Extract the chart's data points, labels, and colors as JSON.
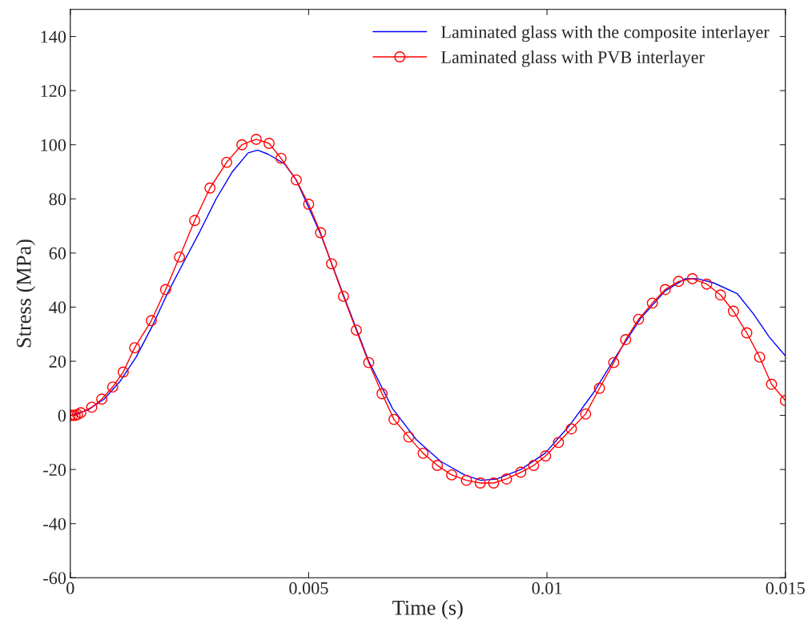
{
  "chart_data": {
    "type": "line",
    "xlabel": "Time (s)",
    "ylabel": "Stress (MPa)",
    "xlim": [
      0,
      0.015
    ],
    "ylim": [
      -60,
      150
    ],
    "xticks": [
      0,
      0.005,
      0.01,
      0.015
    ],
    "yticks": [
      -60,
      -40,
      -20,
      0,
      20,
      40,
      60,
      80,
      100,
      120,
      140
    ],
    "grid": false,
    "legend": "top right",
    "series": [
      {
        "name": "Laminated glass with the composite interlayer",
        "color": "#0000ff",
        "marker": "none",
        "x": [
          0,
          0.00037,
          0.00071,
          0.00104,
          0.00138,
          0.00172,
          0.00205,
          0.00239,
          0.00272,
          0.00306,
          0.0034,
          0.00373,
          0.00393,
          0.00415,
          0.00449,
          0.00474,
          0.00525,
          0.00575,
          0.00626,
          0.00676,
          0.00726,
          0.00777,
          0.00827,
          0.00861,
          0.00895,
          0.00945,
          0.00996,
          0.01046,
          0.01096,
          0.01147,
          0.01197,
          0.01248,
          0.0129,
          0.01315,
          0.01349,
          0.01399,
          0.01433,
          0.01466,
          0.015
        ],
        "values": [
          0,
          2,
          6,
          12.5,
          21.5,
          33,
          45.5,
          57,
          68,
          80,
          90,
          97,
          98,
          96.5,
          93,
          87,
          67,
          43.5,
          20,
          2.5,
          -9,
          -17,
          -22,
          -24,
          -23.5,
          -20,
          -14,
          -4,
          8,
          22.5,
          36,
          46,
          50.5,
          50.5,
          49,
          45,
          37.5,
          29,
          22
        ]
      },
      {
        "name": "Laminated glass with PVB interlayer",
        "color": "#ff0000",
        "marker": "circle",
        "x": [
          0,
          5e-05,
          0.0001,
          0.00015,
          0.00022,
          0.00045,
          0.00066,
          0.00089,
          0.00111,
          0.00135,
          0.0017,
          0.002,
          0.00229,
          0.00261,
          0.00293,
          0.00328,
          0.0036,
          0.0039,
          0.00417,
          0.00442,
          0.00474,
          0.005,
          0.00525,
          0.00548,
          0.00573,
          0.006,
          0.00626,
          0.00654,
          0.00679,
          0.0071,
          0.0074,
          0.0077,
          0.008,
          0.00831,
          0.0086,
          0.00888,
          0.00915,
          0.00945,
          0.00972,
          0.00997,
          0.01024,
          0.01051,
          0.01081,
          0.0111,
          0.0114,
          0.01165,
          0.01192,
          0.01221,
          0.01248,
          0.01276,
          0.01305,
          0.01335,
          0.01364,
          0.01391,
          0.01419,
          0.01446,
          0.01471,
          0.015
        ],
        "values": [
          0,
          0,
          0,
          0.3,
          1,
          3,
          6,
          10.5,
          16,
          25,
          35,
          46.5,
          58.5,
          72,
          84,
          93.5,
          100,
          102,
          100.5,
          95,
          87,
          78,
          67.5,
          56,
          44,
          31.5,
          19.5,
          8,
          -1.5,
          -8,
          -14,
          -18.5,
          -22,
          -24,
          -25,
          -25,
          -23.5,
          -21,
          -18.5,
          -15,
          -10,
          -5,
          0.5,
          10,
          19.5,
          28,
          35.5,
          41.5,
          46.5,
          49.5,
          50.5,
          48.5,
          44.5,
          38.5,
          30.5,
          21.5,
          11.5,
          5.5
        ]
      }
    ]
  }
}
